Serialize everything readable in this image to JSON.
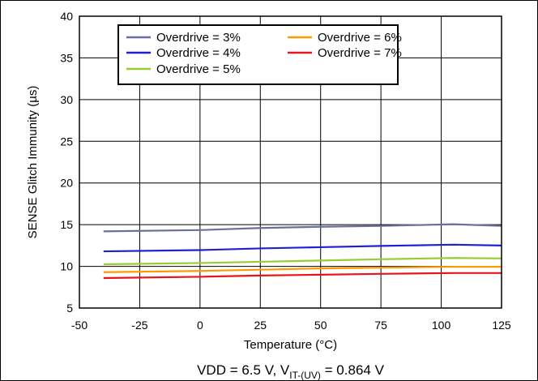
{
  "chart_data": {
    "type": "line",
    "title": "",
    "xlabel": "Temperature (°C)",
    "ylabel": "SENSE Glitch Immunity (µs)",
    "xlim": [
      -50,
      125
    ],
    "ylim": [
      5,
      40
    ],
    "xticks": [
      -50,
      -25,
      0,
      25,
      50,
      75,
      100,
      125
    ],
    "yticks": [
      5,
      10,
      15,
      20,
      25,
      30,
      35,
      40
    ],
    "grid": true,
    "legend_position": "top-left",
    "x": [
      -40,
      0,
      25,
      50,
      75,
      105,
      125
    ],
    "series": [
      {
        "name": "Overdrive = 3%",
        "color": "#6b6f9c",
        "values": [
          14.2,
          14.35,
          14.6,
          14.75,
          14.85,
          15.05,
          14.85
        ]
      },
      {
        "name": "Overdrive = 4%",
        "color": "#1f1fd6",
        "values": [
          11.8,
          11.95,
          12.15,
          12.3,
          12.45,
          12.6,
          12.5
        ]
      },
      {
        "name": "Overdrive = 5%",
        "color": "#99cc33",
        "values": [
          10.25,
          10.4,
          10.55,
          10.7,
          10.85,
          11.0,
          10.95
        ]
      },
      {
        "name": "Overdrive = 6%",
        "color": "#ff9900",
        "values": [
          9.3,
          9.45,
          9.6,
          9.75,
          9.85,
          9.95,
          9.95
        ]
      },
      {
        "name": "Overdrive = 7%",
        "color": "#e8141c",
        "values": [
          8.6,
          8.75,
          8.9,
          9.0,
          9.1,
          9.2,
          9.2
        ]
      }
    ],
    "caption": {
      "prefix": "VDD = 6.5 V, V",
      "subscript": "IT-(UV)",
      "suffix": " = 0.864 V"
    }
  }
}
